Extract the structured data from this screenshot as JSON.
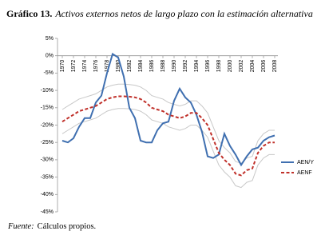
{
  "chart_data": {
    "type": "line",
    "title_label": "Gráfico 13.",
    "title": "Activos externos netos de largo plazo con la estimación alternativa",
    "source_label": "Fuente:",
    "source": "Cálculos propios.",
    "x": [
      1970,
      1971,
      1972,
      1973,
      1974,
      1975,
      1976,
      1977,
      1978,
      1979,
      1980,
      1981,
      1982,
      1983,
      1984,
      1985,
      1986,
      1987,
      1988,
      1989,
      1990,
      1991,
      1992,
      1993,
      1994,
      1995,
      1996,
      1997,
      1998,
      1999,
      2000,
      2001,
      2002,
      2003,
      2004,
      2005,
      2006,
      2007,
      2008
    ],
    "xlim": [
      1970,
      2008
    ],
    "xticks": [
      1970,
      1972,
      1974,
      1976,
      1978,
      1980,
      1982,
      1984,
      1986,
      1988,
      1990,
      1992,
      1994,
      1996,
      1998,
      2000,
      2002,
      2004,
      2006,
      2008
    ],
    "ylim": [
      -45,
      5
    ],
    "yticks": [
      {
        "value": 5,
        "label": "5%"
      },
      {
        "value": 0,
        "label": "0%"
      },
      {
        "value": -5,
        "label": "-5%"
      },
      {
        "value": -10,
        "label": "-10%"
      },
      {
        "value": -15,
        "label": "-15%"
      },
      {
        "value": -20,
        "label": "-20%"
      },
      {
        "value": -25,
        "label": "-25%"
      },
      {
        "value": -30,
        "label": "-30%"
      },
      {
        "value": -35,
        "label": "-35%"
      },
      {
        "value": -40,
        "label": "-40%"
      },
      {
        "value": -45,
        "label": "-45%"
      }
    ],
    "series": [
      {
        "color": "#c8c8c8",
        "values": [
          -15.5,
          -14.5,
          -13.5,
          -12.5,
          -12,
          -11.5,
          -11,
          -10,
          -9,
          -8.5,
          -8.2,
          -8.2,
          -8.3,
          -8.5,
          -9,
          -10,
          -11.5,
          -12,
          -12.5,
          -13.5,
          -14,
          -14.5,
          -14,
          -13,
          -13,
          -14.5,
          -16.5,
          -20.5,
          -24.5,
          -26.5,
          -28,
          -30.5,
          -31,
          -29.5,
          -29,
          -24.5,
          -22.5,
          -21.5,
          -21.5
        ]
      },
      {
        "color": "#c8c8c8",
        "values": [
          -22.5,
          -21.5,
          -20.5,
          -19.5,
          -19,
          -18.5,
          -18,
          -17,
          -16,
          -15.5,
          -15.2,
          -15.2,
          -15.3,
          -15.5,
          -16,
          -17,
          -18.5,
          -19,
          -19.5,
          -20.5,
          -21,
          -21.5,
          -21,
          -20,
          -20,
          -21.5,
          -23.5,
          -27.5,
          -31.5,
          -33.5,
          -35,
          -37.5,
          -38,
          -36.5,
          -36,
          -31.5,
          -29.5,
          -28.5,
          -28.5
        ]
      },
      {
        "name": "AEN/Y",
        "color": "#3f6fb0",
        "dashed": false,
        "values": [
          -24.5,
          -25,
          -23.8,
          -20.5,
          -18,
          -18,
          -13.5,
          -11.5,
          -5,
          0.5,
          -0.5,
          -6,
          -15,
          -18,
          -24.5,
          -25,
          -25,
          -21.5,
          -19.5,
          -19,
          -13,
          -9.5,
          -12,
          -13.5,
          -17,
          -22,
          -29,
          -29.5,
          -28.5,
          -22.5,
          -26,
          -28.5,
          -31.5,
          -29,
          -27,
          -26.5,
          -24.5,
          -23.5,
          -23
        ]
      },
      {
        "name": "AENF",
        "color": "#c0302a",
        "dashed": true,
        "values": [
          -19,
          -18,
          -17,
          -16,
          -15.5,
          -15,
          -14.5,
          -13.5,
          -12.5,
          -12,
          -11.7,
          -11.7,
          -11.8,
          -12,
          -12.5,
          -13.5,
          -15,
          -15.5,
          -16,
          -17,
          -17.5,
          -18,
          -17.5,
          -16.5,
          -16.5,
          -18,
          -20,
          -24,
          -28,
          -30,
          -31.5,
          -34,
          -34.5,
          -33,
          -32.5,
          -28,
          -26,
          -25,
          -25
        ]
      }
    ]
  }
}
